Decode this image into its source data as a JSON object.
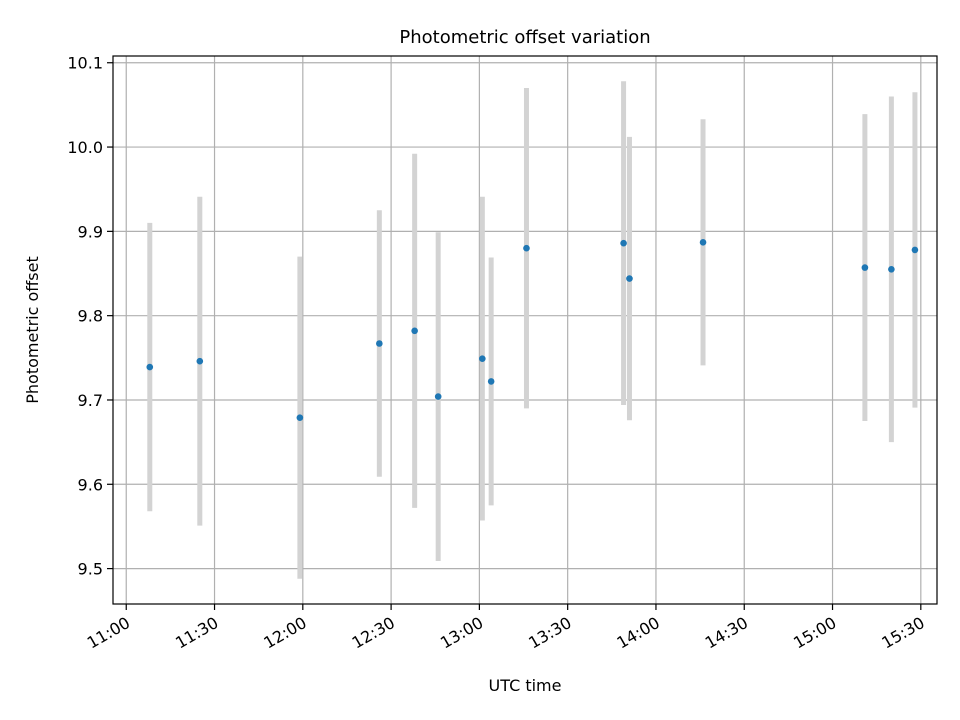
{
  "chart_data": {
    "type": "scatter",
    "title": "Photometric offset variation",
    "xlabel": "UTC time",
    "ylabel": "Photometric offset",
    "x_tick_labels": [
      "11:00",
      "11:30",
      "12:00",
      "12:30",
      "13:00",
      "13:30",
      "14:00",
      "14:30",
      "15:00",
      "15:30"
    ],
    "x_tick_minutes": [
      660,
      690,
      720,
      750,
      780,
      810,
      840,
      870,
      900,
      930
    ],
    "xlim": [
      655.5,
      935.5
    ],
    "y_ticks": [
      9.5,
      9.6,
      9.7,
      9.8,
      9.9,
      10.0,
      10.1
    ],
    "y_tick_labels": [
      "9.5",
      "9.6",
      "9.7",
      "9.8",
      "9.9",
      "10.0",
      "10.1"
    ],
    "ylim": [
      9.458,
      10.108
    ],
    "grid": true,
    "marker_color": "#1f77b4",
    "errorbar_color": "#d3d3d3",
    "points": [
      {
        "time": "11:08",
        "y": 9.739,
        "err": 0.171
      },
      {
        "time": "11:25",
        "y": 9.746,
        "err": 0.195
      },
      {
        "time": "11:59",
        "y": 9.679,
        "err": 0.191
      },
      {
        "time": "12:26",
        "y": 9.767,
        "err": 0.158
      },
      {
        "time": "12:38",
        "y": 9.782,
        "err": 0.21
      },
      {
        "time": "12:46",
        "y": 9.704,
        "err": 0.195
      },
      {
        "time": "13:01",
        "y": 9.749,
        "err": 0.192
      },
      {
        "time": "13:04",
        "y": 9.722,
        "err": 0.147
      },
      {
        "time": "13:16",
        "y": 9.88,
        "err": 0.19
      },
      {
        "time": "13:49",
        "y": 9.886,
        "err": 0.192
      },
      {
        "time": "13:51",
        "y": 9.844,
        "err": 0.168
      },
      {
        "time": "14:16",
        "y": 9.887,
        "err": 0.146
      },
      {
        "time": "15:11",
        "y": 9.857,
        "err": 0.182
      },
      {
        "time": "15:20",
        "y": 9.855,
        "err": 0.205
      },
      {
        "time": "15:28",
        "y": 9.878,
        "err": 0.187
      }
    ]
  }
}
